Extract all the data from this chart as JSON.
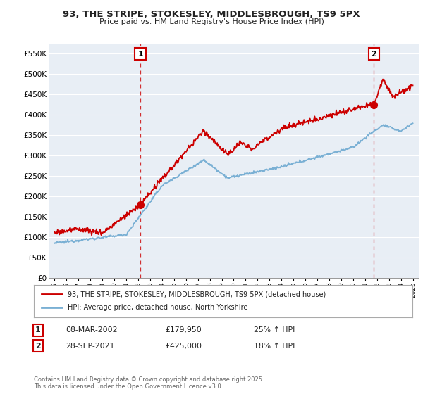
{
  "title": "93, THE STRIPE, STOKESLEY, MIDDLESBROUGH, TS9 5PX",
  "subtitle": "Price paid vs. HM Land Registry's House Price Index (HPI)",
  "legend_entry1": "93, THE STRIPE, STOKESLEY, MIDDLESBROUGH, TS9 5PX (detached house)",
  "legend_entry2": "HPI: Average price, detached house, North Yorkshire",
  "footnote": "Contains HM Land Registry data © Crown copyright and database right 2025.\nThis data is licensed under the Open Government Licence v3.0.",
  "annotation1_label": "1",
  "annotation1_date": "08-MAR-2002",
  "annotation1_price": "£179,950",
  "annotation1_hpi": "25% ↑ HPI",
  "annotation1_year": 2002.18,
  "annotation1_value": 179950,
  "annotation2_label": "2",
  "annotation2_date": "28-SEP-2021",
  "annotation2_price": "£425,000",
  "annotation2_hpi": "18% ↑ HPI",
  "annotation2_year": 2021.74,
  "annotation2_value": 425000,
  "red_color": "#cc0000",
  "blue_color": "#7ab0d4",
  "chart_bg": "#e8eef5",
  "background_color": "#ffffff",
  "grid_color": "#ffffff",
  "ylim": [
    0,
    575000
  ],
  "yticks": [
    0,
    50000,
    100000,
    150000,
    200000,
    250000,
    300000,
    350000,
    400000,
    450000,
    500000,
    550000
  ],
  "xlim_start": 1994.5,
  "xlim_end": 2025.5
}
